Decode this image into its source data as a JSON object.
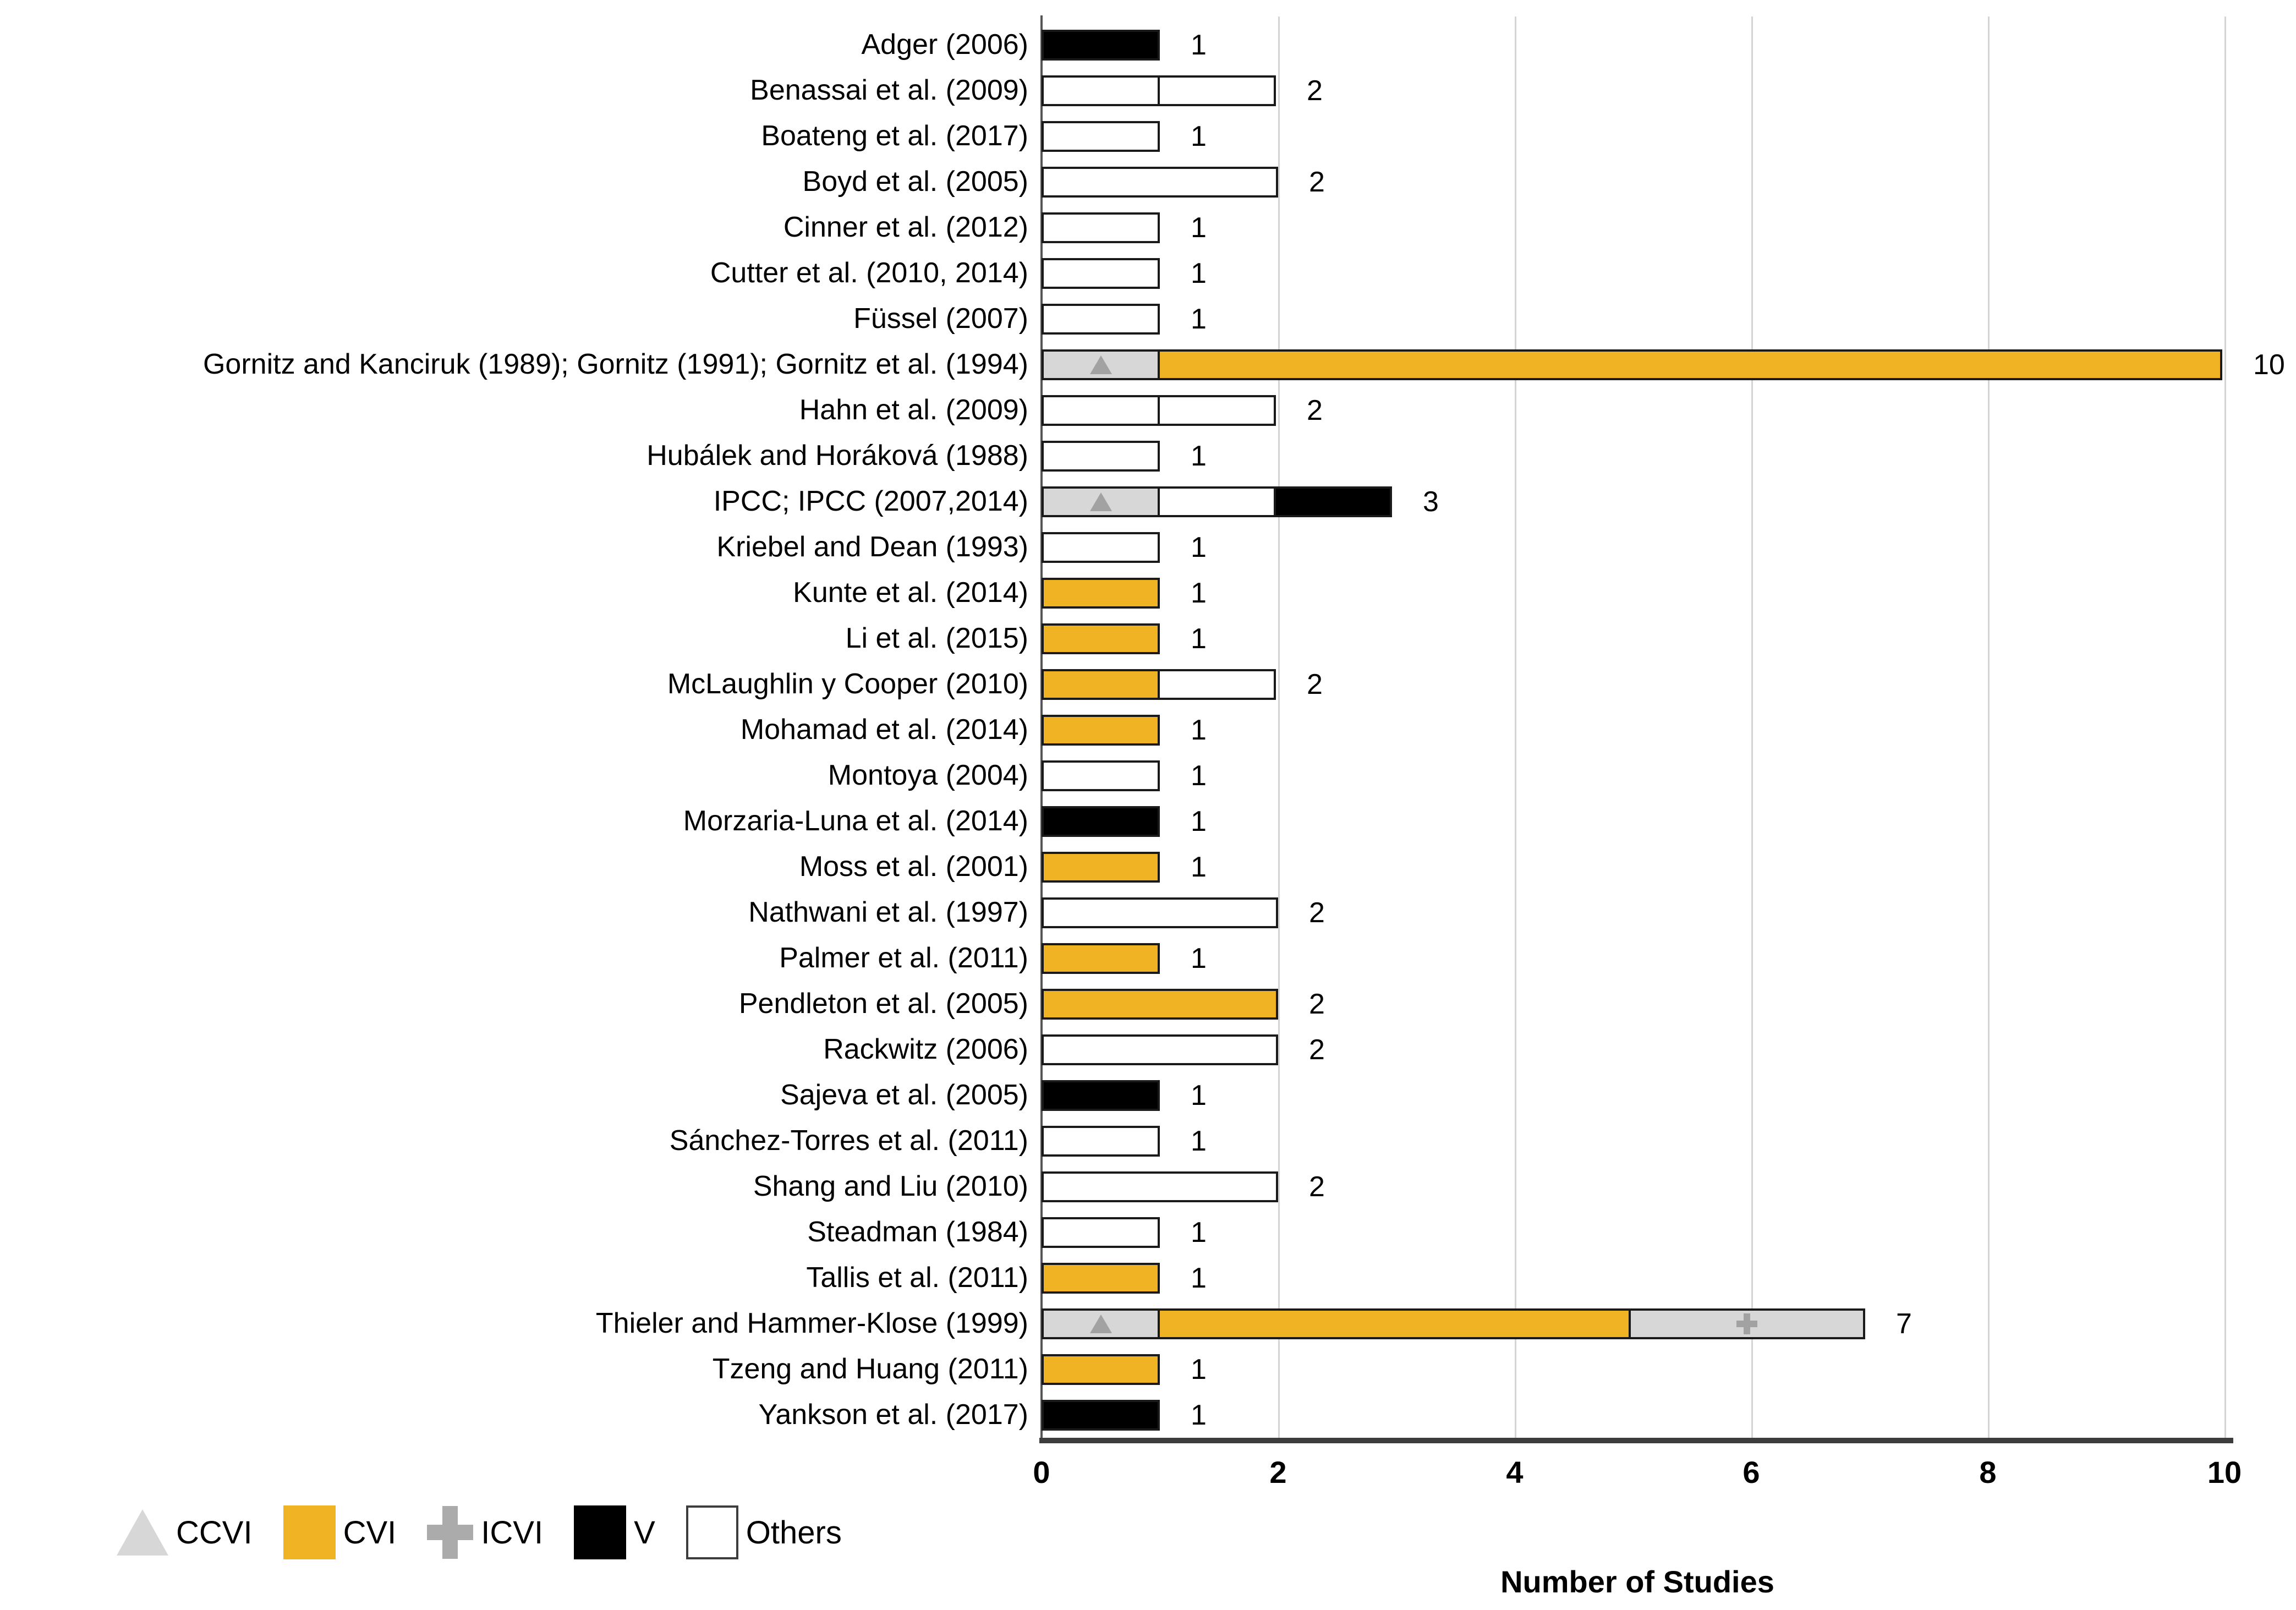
{
  "chart_data": {
    "type": "bar",
    "orientation": "horizontal",
    "stacked": true,
    "title": "",
    "xlabel": "Number of Studies",
    "ylabel": "",
    "xlim": [
      0,
      10
    ],
    "x_ticks": [
      0,
      2,
      4,
      6,
      8,
      10
    ],
    "grid": "vertical gridlines at ticks, no horizontal grid",
    "legend_position": "bottom-left",
    "categories": [
      "CCVI",
      "CVI",
      "ICVI",
      "V",
      "Others"
    ],
    "rows": [
      {
        "label": "Adger (2006)",
        "total": 1,
        "segments": [
          {
            "category": "V",
            "value": 1
          }
        ]
      },
      {
        "label": "Benassai et al. (2009)",
        "total": 2,
        "segments": [
          {
            "category": "Others",
            "value": 1
          },
          {
            "category": "Others",
            "value": 1
          }
        ]
      },
      {
        "label": "Boateng et al. (2017)",
        "total": 1,
        "segments": [
          {
            "category": "Others",
            "value": 1
          }
        ]
      },
      {
        "label": "Boyd et al. (2005)",
        "total": 2,
        "segments": [
          {
            "category": "Others",
            "value": 2
          }
        ]
      },
      {
        "label": "Cinner et al. (2012)",
        "total": 1,
        "segments": [
          {
            "category": "Others",
            "value": 1
          }
        ]
      },
      {
        "label": "Cutter et al. (2010, 2014)",
        "total": 1,
        "segments": [
          {
            "category": "Others",
            "value": 1
          }
        ]
      },
      {
        "label": "Füssel (2007)",
        "total": 1,
        "segments": [
          {
            "category": "Others",
            "value": 1
          }
        ]
      },
      {
        "label": "Gornitz and Kanciruk (1989); Gornitz (1991); Gornitz et al. (1994)",
        "total": 10,
        "segments": [
          {
            "category": "CCVI",
            "value": 1
          },
          {
            "category": "CVI",
            "value": 9
          }
        ]
      },
      {
        "label": "Hahn et al. (2009)",
        "total": 2,
        "segments": [
          {
            "category": "Others",
            "value": 1
          },
          {
            "category": "Others",
            "value": 1
          }
        ]
      },
      {
        "label": "Hubálek and Horáková (1988)",
        "total": 1,
        "segments": [
          {
            "category": "Others",
            "value": 1
          }
        ]
      },
      {
        "label": "IPCC; IPCC (2007,2014)",
        "total": 3,
        "segments": [
          {
            "category": "CCVI",
            "value": 1
          },
          {
            "category": "Others",
            "value": 1
          },
          {
            "category": "V",
            "value": 1
          }
        ]
      },
      {
        "label": "Kriebel and Dean (1993)",
        "total": 1,
        "segments": [
          {
            "category": "Others",
            "value": 1
          }
        ]
      },
      {
        "label": "Kunte et al. (2014)",
        "total": 1,
        "segments": [
          {
            "category": "CVI",
            "value": 1
          }
        ]
      },
      {
        "label": "Li et al. (2015)",
        "total": 1,
        "segments": [
          {
            "category": "CVI",
            "value": 1
          }
        ]
      },
      {
        "label": "McLaughlin y Cooper (2010)",
        "total": 2,
        "segments": [
          {
            "category": "CVI",
            "value": 1
          },
          {
            "category": "Others",
            "value": 1
          }
        ]
      },
      {
        "label": "Mohamad et al. (2014)",
        "total": 1,
        "segments": [
          {
            "category": "CVI",
            "value": 1
          }
        ]
      },
      {
        "label": "Montoya (2004)",
        "total": 1,
        "segments": [
          {
            "category": "Others",
            "value": 1
          }
        ]
      },
      {
        "label": "Morzaria-Luna et al. (2014)",
        "total": 1,
        "segments": [
          {
            "category": "V",
            "value": 1
          }
        ]
      },
      {
        "label": "Moss et al. (2001)",
        "total": 1,
        "segments": [
          {
            "category": "CVI",
            "value": 1
          }
        ]
      },
      {
        "label": "Nathwani et al. (1997)",
        "total": 2,
        "segments": [
          {
            "category": "Others",
            "value": 2
          }
        ]
      },
      {
        "label": "Palmer et al. (2011)",
        "total": 1,
        "segments": [
          {
            "category": "CVI",
            "value": 1
          }
        ]
      },
      {
        "label": "Pendleton et al. (2005)",
        "total": 2,
        "segments": [
          {
            "category": "CVI",
            "value": 2
          }
        ]
      },
      {
        "label": "Rackwitz (2006)",
        "total": 2,
        "segments": [
          {
            "category": "Others",
            "value": 2
          }
        ]
      },
      {
        "label": "Sajeva et al. (2005)",
        "total": 1,
        "segments": [
          {
            "category": "V",
            "value": 1
          }
        ]
      },
      {
        "label": "Sánchez-Torres et al. (2011)",
        "total": 1,
        "segments": [
          {
            "category": "Others",
            "value": 1
          }
        ]
      },
      {
        "label": "Shang and Liu (2010)",
        "total": 2,
        "segments": [
          {
            "category": "Others",
            "value": 2
          }
        ]
      },
      {
        "label": "Steadman (1984)",
        "total": 1,
        "segments": [
          {
            "category": "Others",
            "value": 1
          }
        ]
      },
      {
        "label": "Tallis et al. (2011)",
        "total": 1,
        "segments": [
          {
            "category": "CVI",
            "value": 1
          }
        ]
      },
      {
        "label": "Thieler and Hammer-Klose (1999)",
        "total": 7,
        "segments": [
          {
            "category": "CCVI",
            "value": 1
          },
          {
            "category": "CVI",
            "value": 4
          },
          {
            "category": "ICVI",
            "value": 2
          }
        ]
      },
      {
        "label": "Tzeng and Huang (2011)",
        "total": 1,
        "segments": [
          {
            "category": "CVI",
            "value": 1
          }
        ]
      },
      {
        "label": "Yankson et al. (2017)",
        "total": 1,
        "segments": [
          {
            "category": "V",
            "value": 1
          }
        ]
      }
    ]
  },
  "category_styles": {
    "CCVI": {
      "fill": "#d7d7d7",
      "marker": "triangle",
      "marker_color": "#a2a2a2"
    },
    "CVI": {
      "fill": "#f0b323",
      "marker": null
    },
    "ICVI": {
      "fill": "#d7d7d7",
      "marker": "plus",
      "marker_color": "#a2a2a2"
    },
    "V": {
      "fill": "#000000",
      "marker": null
    },
    "Others": {
      "fill": "#ffffff",
      "marker": null
    }
  },
  "colors": {
    "bar_border": "#1a1a1a",
    "gridline": "#d4d4d4",
    "y_axis_line": "#555555",
    "x_axis_line": "#3d3d3d",
    "text": "#000000"
  },
  "legend": {
    "items": [
      {
        "label": "CCVI",
        "marker": "triangle"
      },
      {
        "label": "CVI",
        "marker": "swatch",
        "color": "#f0b323"
      },
      {
        "label": "ICVI",
        "marker": "plus"
      },
      {
        "label": "V",
        "marker": "swatch",
        "color": "#000000"
      },
      {
        "label": "Others",
        "marker": "swatch",
        "color": "#ffffff"
      }
    ]
  }
}
